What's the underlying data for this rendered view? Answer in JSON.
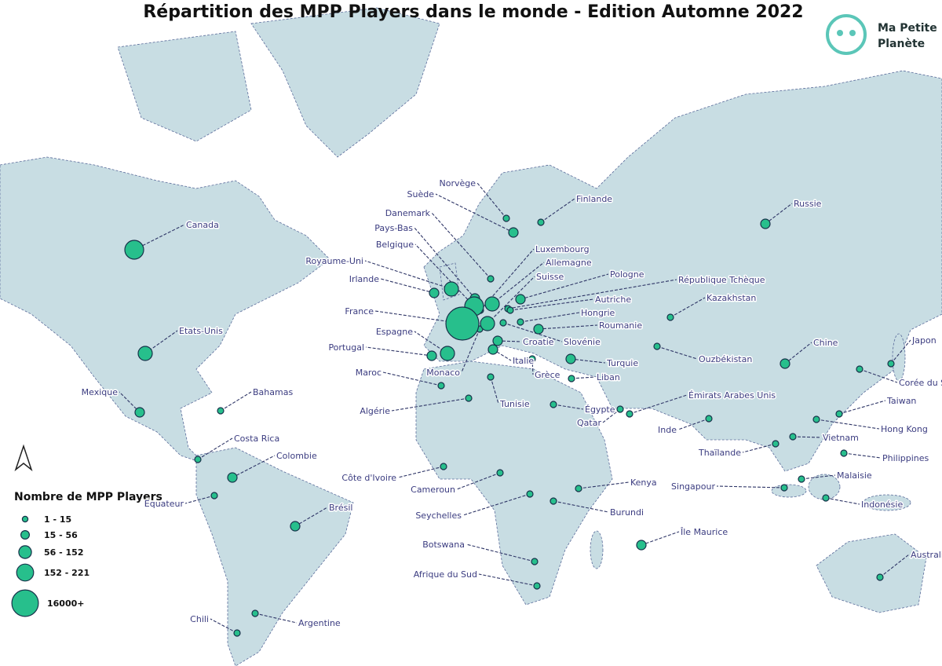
{
  "title": "Répartition des MPP Players dans le monde - Edition Automne 2022",
  "logo": {
    "line1": "Ma Petite",
    "line2": "Planète"
  },
  "legend": {
    "title": "Nombre de MPP Players",
    "classes": [
      {
        "label": "1 - 15",
        "countries": [
          "Norvège",
          "Finlande",
          "Danemark",
          "Luxembourg",
          "République Tchèque",
          "Autriche",
          "Hongrie",
          "Slovénie",
          "Grèce",
          "Liban",
          "Monaco",
          "Maroc",
          "Tunisie",
          "Algérie",
          "Égypte",
          "Émirats Arabes Unis",
          "Qatar",
          "Ouzbékistan",
          "Kazakhstan",
          "Japon",
          "Corée du Sud",
          "Taiwan",
          "Hong Kong",
          "Inde",
          "Vietnam",
          "Thaïlande",
          "Philippines",
          "Malaisie",
          "Singapour",
          "Indonésie",
          "Australie",
          "Kenya",
          "Burundi",
          "Cameroun",
          "Côte d'Ivoire",
          "Seychelles",
          "Botswana",
          "Afrique du Sud",
          "Bahamas",
          "Costa Rica",
          "Equateur",
          "Chili",
          "Argentine"
        ]
      },
      {
        "label": "15 - 56",
        "countries": [
          "Suède",
          "Irlande",
          "Portugal",
          "Croatie",
          "Pologne",
          "Roumanie",
          "Turquie",
          "Italie",
          "Russie",
          "Chine",
          "Brésil",
          "Mexique",
          "Colombie",
          "Île Maurice",
          "Pays-Bas"
        ]
      },
      {
        "label": "56 - 152",
        "countries": [
          "Etats-Unis",
          "Royaume-Uni",
          "Allemagne",
          "Suisse",
          "Espagne"
        ]
      },
      {
        "label": "152 - 221",
        "countries": [
          "Canada",
          "Belgique"
        ]
      },
      {
        "label": "16000+",
        "countries": [
          "France"
        ]
      }
    ]
  }
}
